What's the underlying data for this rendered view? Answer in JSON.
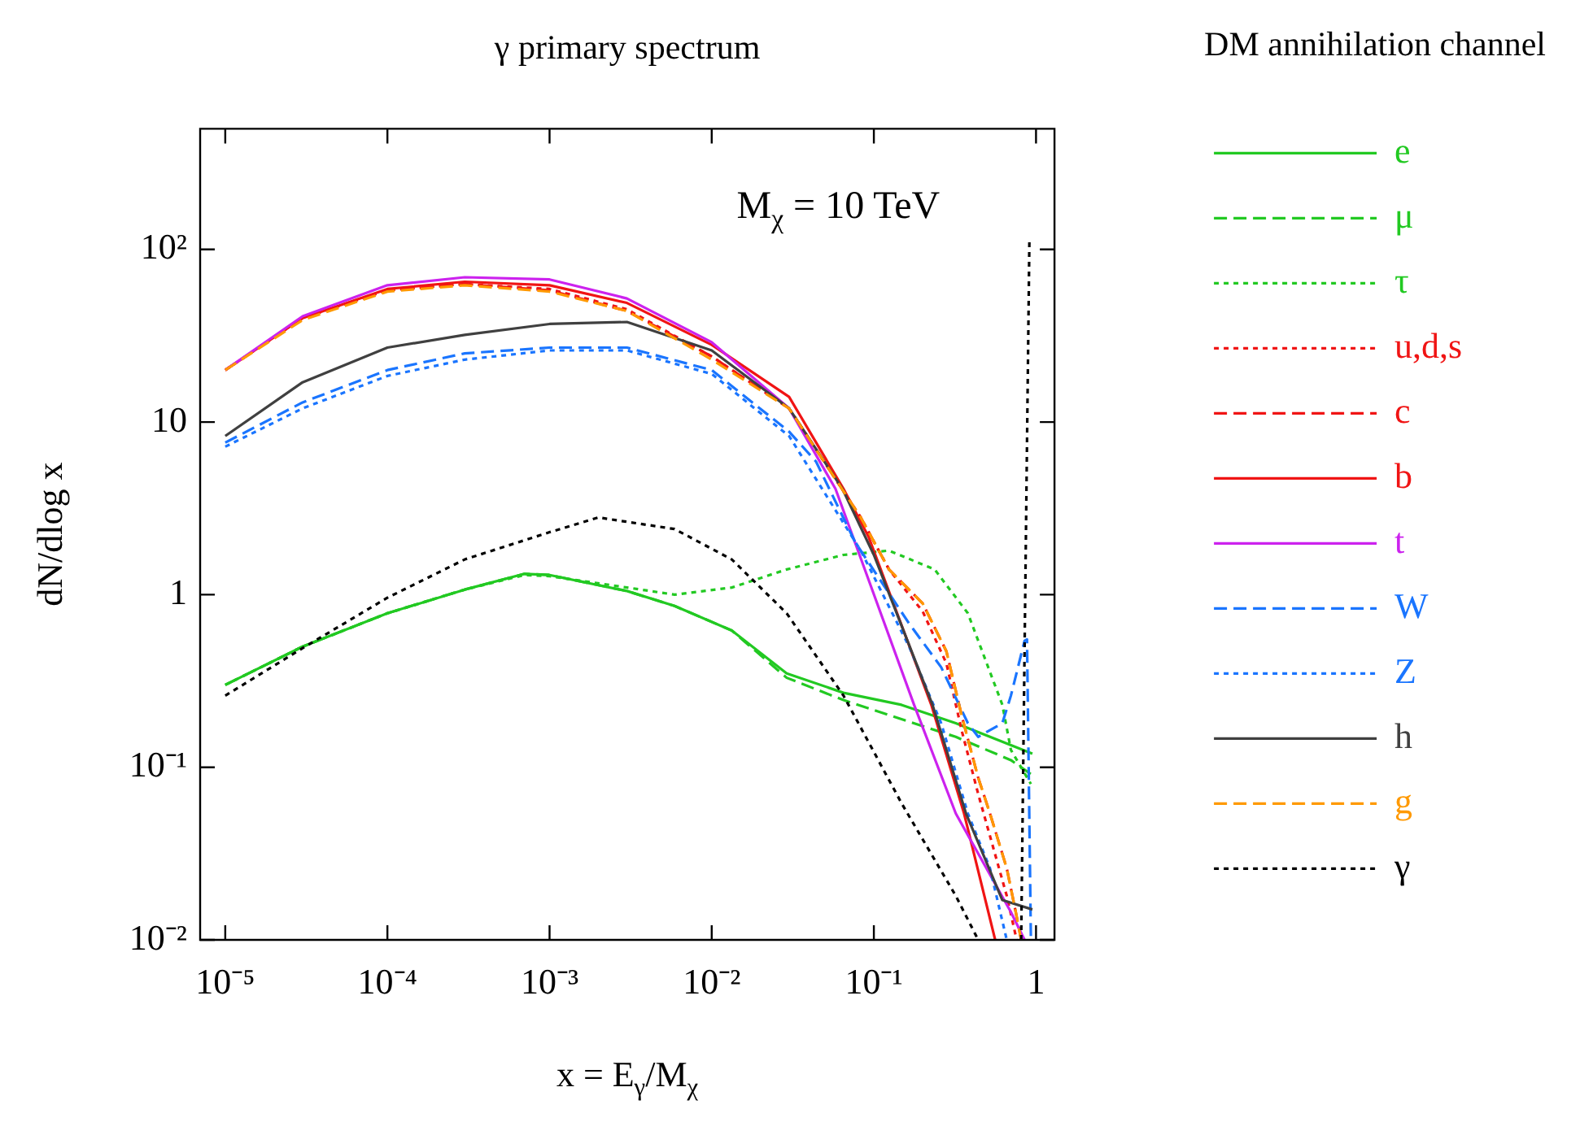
{
  "chart_data": {
    "type": "line",
    "title": "γ primary spectrum",
    "legend_title": "DM annihilation channel",
    "xlabel": "x = E$_{γ}$/M$_{χ}$",
    "ylabel": "dN/dlog x",
    "annotations": [
      "M$_{χ}$ = 10 TeV"
    ],
    "log": "xy",
    "legend": "right",
    "xlim": [
      7e-06,
      1.3
    ],
    "ylim": [
      0.01,
      500
    ],
    "xticks": [
      {
        "value": 1e-05,
        "label": "10⁻⁵"
      },
      {
        "value": 0.0001,
        "label": "10⁻⁴"
      },
      {
        "value": 0.001,
        "label": "10⁻³"
      },
      {
        "value": 0.01,
        "label": "10⁻²"
      },
      {
        "value": 0.1,
        "label": "10⁻¹"
      },
      1
    ],
    "yticks": [
      {
        "value": 0.01,
        "label": "10⁻²"
      },
      {
        "value": 0.1,
        "label": "10⁻¹"
      },
      1,
      10,
      {
        "value": 100,
        "label": "10²"
      }
    ],
    "series": [
      {
        "name": "e",
        "color": "#22c922",
        "line_style": "solid",
        "x": [
          1e-05,
          3e-05,
          0.0001,
          0.0003,
          0.0007,
          0.001,
          0.003,
          0.0059,
          0.0133,
          0.029,
          0.065,
          0.148,
          0.32,
          0.95
        ],
        "values": [
          0.3,
          0.5,
          0.78,
          1.07,
          1.32,
          1.3,
          1.05,
          0.86,
          0.62,
          0.35,
          0.27,
          0.23,
          0.18,
          0.12
        ]
      },
      {
        "name": "μ",
        "color": "#22c922",
        "line_style": "dashed",
        "x": [
          1e-05,
          3e-05,
          0.0001,
          0.0003,
          0.0007,
          0.001,
          0.003,
          0.0059,
          0.0133,
          0.029,
          0.065,
          0.148,
          0.32,
          0.7,
          0.95
        ],
        "values": [
          0.3,
          0.5,
          0.78,
          1.07,
          1.32,
          1.3,
          1.05,
          0.86,
          0.62,
          0.33,
          0.245,
          0.19,
          0.15,
          0.11,
          0.09
        ]
      },
      {
        "name": "τ",
        "color": "#22c922",
        "line_style": "dotted",
        "x": [
          1e-05,
          3e-05,
          0.0001,
          0.0003,
          0.0007,
          0.001,
          0.003,
          0.0059,
          0.0133,
          0.029,
          0.065,
          0.124,
          0.237,
          0.38,
          0.62,
          0.7,
          0.93
        ],
        "values": [
          0.3,
          0.5,
          0.78,
          1.07,
          1.3,
          1.28,
          1.1,
          1.0,
          1.1,
          1.4,
          1.7,
          1.8,
          1.4,
          0.78,
          0.23,
          0.126,
          0.08
        ]
      },
      {
        "name": "u,d,s",
        "color": "#f01414",
        "line_style": "dotted",
        "x": [
          1e-05,
          3e-05,
          0.0001,
          0.0003,
          0.001,
          0.003,
          0.01,
          0.03,
          0.083,
          0.124,
          0.2,
          0.28,
          0.35,
          0.44,
          0.52,
          0.66,
          0.76
        ],
        "values": [
          20,
          40,
          58,
          63,
          59,
          45,
          24,
          12,
          2.8,
          1.4,
          0.8,
          0.4,
          0.16,
          0.07,
          0.04,
          0.018,
          0.01
        ]
      },
      {
        "name": "c",
        "color": "#f01414",
        "line_style": "dashed",
        "x": [
          1e-05,
          3e-05,
          0.0001,
          0.0003,
          0.001,
          0.003,
          0.01,
          0.03,
          0.083,
          0.124,
          0.2,
          0.28,
          0.35,
          0.44,
          0.52,
          0.66,
          0.75,
          0.81
        ],
        "values": [
          20,
          40,
          58,
          63,
          58,
          44,
          24,
          12,
          2.8,
          1.4,
          0.89,
          0.47,
          0.195,
          0.087,
          0.054,
          0.026,
          0.0145,
          0.01
        ]
      },
      {
        "name": "b",
        "color": "#f01414",
        "line_style": "solid",
        "x": [
          1e-05,
          3e-05,
          0.0001,
          0.0003,
          0.001,
          0.003,
          0.01,
          0.03,
          0.065,
          0.093,
          0.226,
          0.36,
          0.56
        ],
        "values": [
          20,
          40,
          59,
          65,
          62,
          49,
          28,
          14,
          4.1,
          2.15,
          0.23,
          0.054,
          0.01
        ]
      },
      {
        "name": "t",
        "color": "#cc22ee",
        "line_style": "solid",
        "x": [
          1e-05,
          3e-05,
          0.0001,
          0.0003,
          0.001,
          0.003,
          0.01,
          0.03,
          0.058,
          0.177,
          0.32,
          0.7,
          0.85
        ],
        "values": [
          20,
          41,
          62,
          69,
          67,
          52,
          29,
          12,
          4.1,
          0.23,
          0.054,
          0.0145,
          0.01
        ]
      },
      {
        "name": "W",
        "color": "#1a75ff",
        "line_style": "dashed",
        "x": [
          1e-05,
          3e-05,
          0.0001,
          0.0003,
          0.001,
          0.003,
          0.01,
          0.03,
          0.044,
          0.077,
          0.165,
          0.26,
          0.38,
          0.44,
          0.62,
          0.7,
          0.85,
          0.88,
          0.93
        ],
        "values": [
          7.6,
          13,
          20,
          25,
          27,
          27,
          20,
          8.8,
          5.9,
          2.0,
          0.68,
          0.38,
          0.18,
          0.15,
          0.18,
          0.26,
          0.54,
          0.55,
          0.01
        ]
      },
      {
        "name": "Z",
        "color": "#1a75ff",
        "line_style": "dotted",
        "x": [
          1e-05,
          3e-05,
          0.0001,
          0.0003,
          0.001,
          0.003,
          0.01,
          0.03,
          0.083,
          0.165,
          0.26,
          0.38,
          0.52,
          0.66
        ],
        "values": [
          7.2,
          12,
          18.5,
          23,
          26,
          26,
          19,
          8.3,
          1.8,
          0.5,
          0.18,
          0.054,
          0.026,
          0.01
        ]
      },
      {
        "name": "h",
        "color": "#404040",
        "line_style": "solid",
        "x": [
          1e-05,
          3e-05,
          0.0001,
          0.0003,
          0.001,
          0.003,
          0.01,
          0.03,
          0.064,
          0.1,
          0.23,
          0.37,
          0.62,
          0.95
        ],
        "values": [
          8.3,
          17,
          27,
          32,
          37,
          38,
          26,
          12,
          4.1,
          1.7,
          0.23,
          0.054,
          0.017,
          0.015
        ]
      },
      {
        "name": "g",
        "color": "#ff9900",
        "line_style": "dashed",
        "x": [
          1e-05,
          3e-05,
          0.0001,
          0.0003,
          0.001,
          0.003,
          0.01,
          0.03,
          0.083,
          0.124,
          0.2,
          0.28,
          0.35,
          0.44,
          0.52,
          0.66,
          0.75,
          0.81
        ],
        "values": [
          20,
          39,
          57,
          62,
          57,
          44,
          23,
          12,
          2.8,
          1.4,
          0.89,
          0.47,
          0.195,
          0.087,
          0.054,
          0.026,
          0.0145,
          0.01
        ]
      },
      {
        "name": "γ",
        "color": "#000000",
        "line_style": "dotted",
        "x": [
          1e-05,
          3e-05,
          0.0001,
          0.0003,
          0.001,
          0.002,
          0.0059,
          0.0133,
          0.029,
          0.065,
          0.148,
          0.32,
          0.44,
          0.6,
          0.81,
          0.91
        ],
        "values": [
          0.26,
          0.49,
          0.96,
          1.6,
          2.3,
          2.8,
          2.4,
          1.6,
          0.78,
          0.26,
          0.062,
          0.018,
          0.01,
          null,
          0.01,
          110
        ]
      }
    ]
  }
}
